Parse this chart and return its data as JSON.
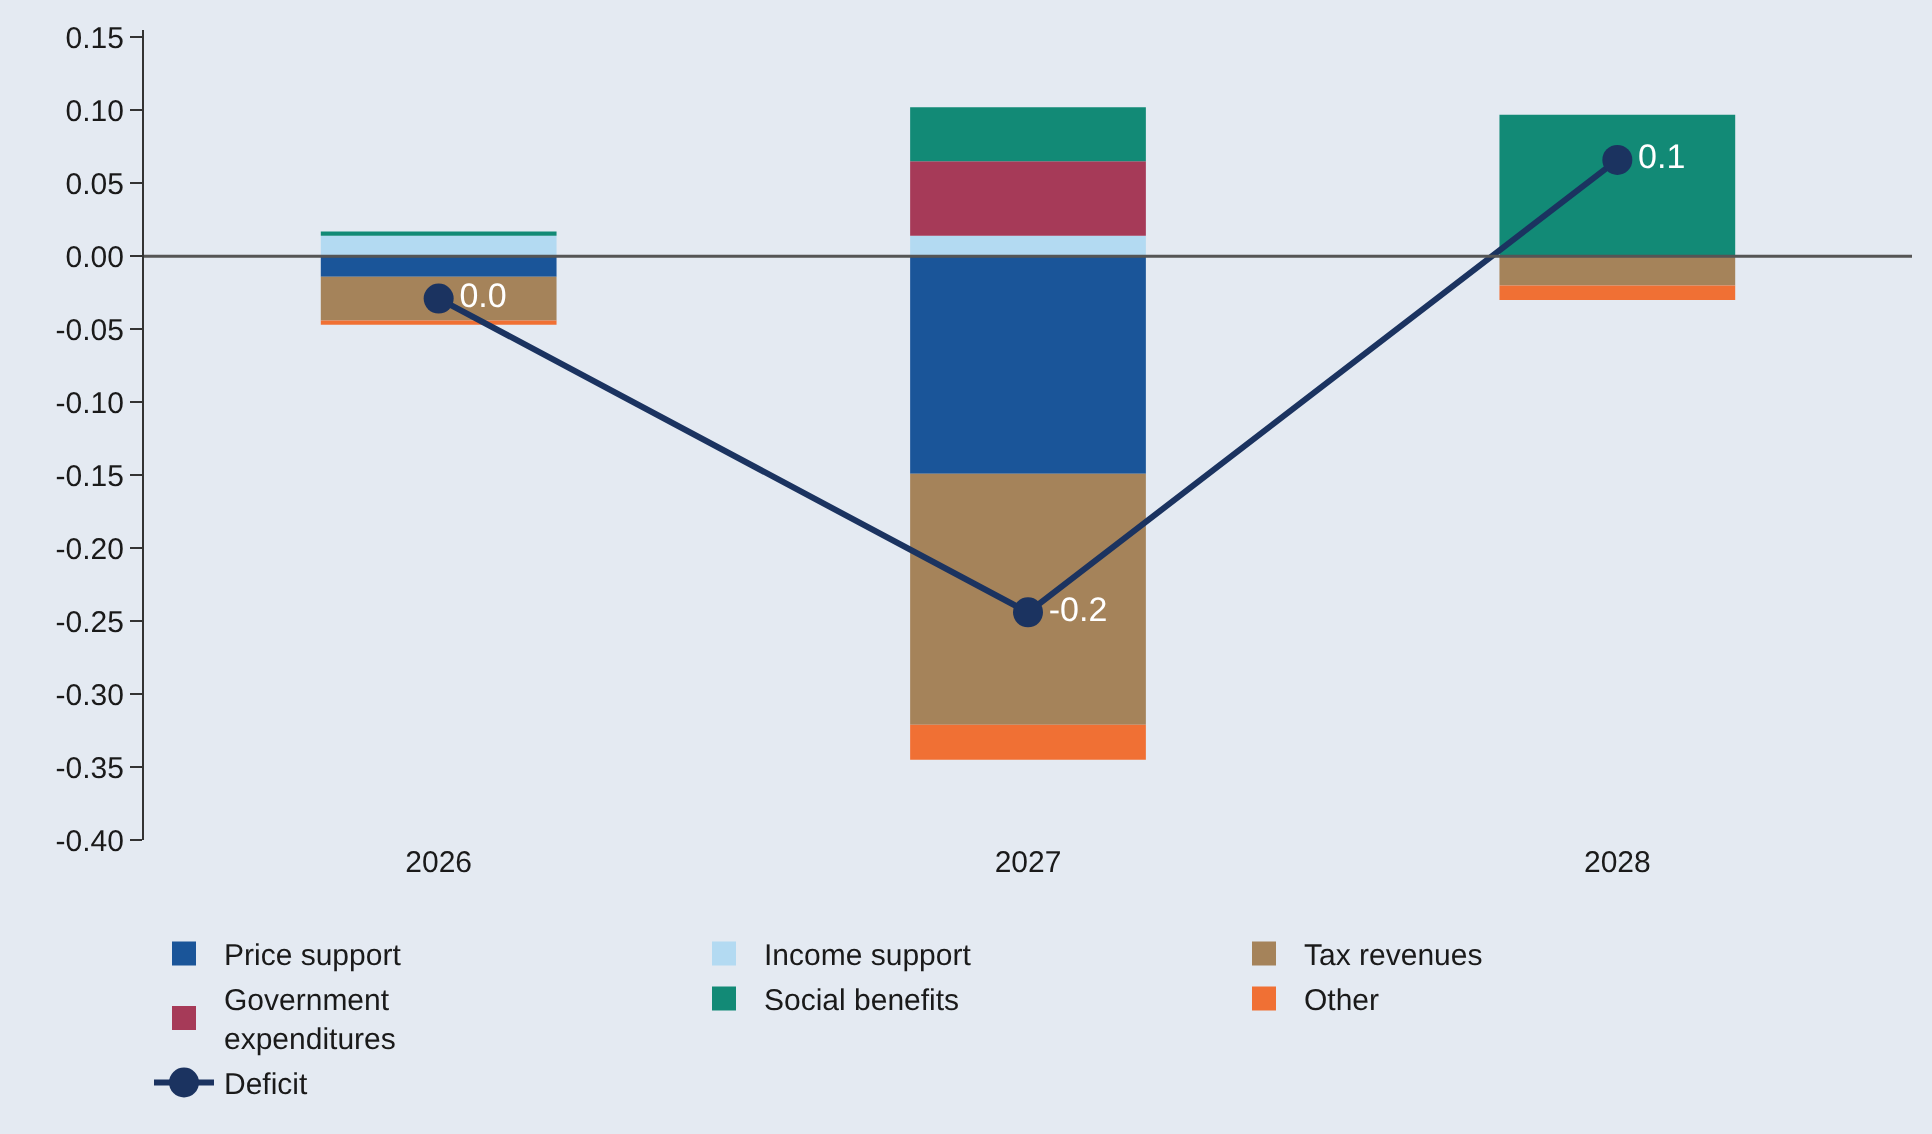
{
  "chart_data": {
    "type": "bar",
    "stacked": true,
    "categories": [
      "2026",
      "2027",
      "2028"
    ],
    "series": [
      {
        "name": "Price support",
        "color": "#1a5599",
        "values": [
          -0.014,
          -0.149,
          null
        ]
      },
      {
        "name": "Income support",
        "color": "#b3daf2",
        "values": [
          0.014,
          0.014,
          null
        ]
      },
      {
        "name": "Tax revenues",
        "color": "#a5835a",
        "values": [
          -0.03,
          -0.172,
          -0.02
        ]
      },
      {
        "name": "Government expenditures",
        "color": "#a63a58",
        "values": [
          null,
          0.051,
          null
        ]
      },
      {
        "name": "Social benefits",
        "color": "#128a76",
        "values": [
          0.003,
          0.037,
          0.097
        ]
      },
      {
        "name": "Other",
        "color": "#f07034",
        "values": [
          -0.003,
          -0.024,
          -0.01
        ]
      },
      {
        "name": "Deficit",
        "type": "line",
        "color": "#1b3360",
        "marker": "circle",
        "values": [
          -0.029,
          -0.244,
          0.066
        ],
        "value_labels": [
          "0.0",
          "-0.2",
          "0.1"
        ]
      }
    ],
    "ylim": [
      -0.4,
      0.155
    ],
    "yticks": [
      {
        "value": 0.15,
        "label": "0.15"
      },
      {
        "value": 0.1,
        "label": "0.10"
      },
      {
        "value": 0.05,
        "label": "0.05"
      },
      {
        "value": 0.0,
        "label": "0.00"
      },
      {
        "value": -0.05,
        "label": "-0.05"
      },
      {
        "value": -0.1,
        "label": "-0.10"
      },
      {
        "value": -0.15,
        "label": "-0.15"
      },
      {
        "value": -0.2,
        "label": "-0.20"
      },
      {
        "value": -0.25,
        "label": "-0.25"
      },
      {
        "value": -0.3,
        "label": "-0.30"
      },
      {
        "value": -0.35,
        "label": "-0.35"
      },
      {
        "value": -0.4,
        "label": "-0.40"
      }
    ],
    "ref_lines": [
      {
        "axis": "y",
        "value": 0,
        "color": "#555555"
      }
    ],
    "grid": false,
    "legend": "bottom"
  }
}
